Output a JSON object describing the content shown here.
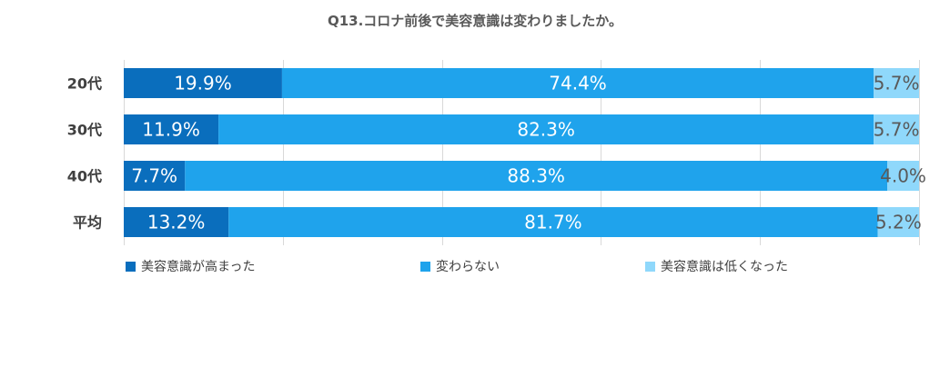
{
  "chart_data": {
    "type": "bar",
    "orientation": "horizontal",
    "stacked": "percent",
    "title": "Q13.コロナ前後で美容意識は変わりましたか。",
    "categories": [
      "20代",
      "30代",
      "40代",
      "平均"
    ],
    "series": [
      {
        "name": "美容意識が高まった",
        "values": [
          19.9,
          11.9,
          7.7,
          13.2
        ],
        "labels": [
          "19.9%",
          "11.9%",
          "7.7%",
          "13.2%"
        ],
        "color": "#0a6ebd",
        "label_color": "#ffffff"
      },
      {
        "name": "変わらない",
        "values": [
          74.4,
          82.3,
          88.3,
          81.7
        ],
        "labels": [
          "74.4%",
          "82.3%",
          "88.3%",
          "81.7%"
        ],
        "color": "#1fa3ec",
        "label_color": "#ffffff"
      },
      {
        "name": "美容意識は低くなった",
        "values": [
          5.7,
          5.7,
          4.0,
          5.2
        ],
        "labels": [
          "5.7%",
          "5.7%",
          "4.0%",
          "5.2%"
        ],
        "color": "#8fd8fb",
        "label_color": "#595959"
      }
    ],
    "xlim": [
      0,
      100
    ],
    "grid": true,
    "legend_position": "bottom",
    "gridline_color": "#d9d9d9"
  }
}
